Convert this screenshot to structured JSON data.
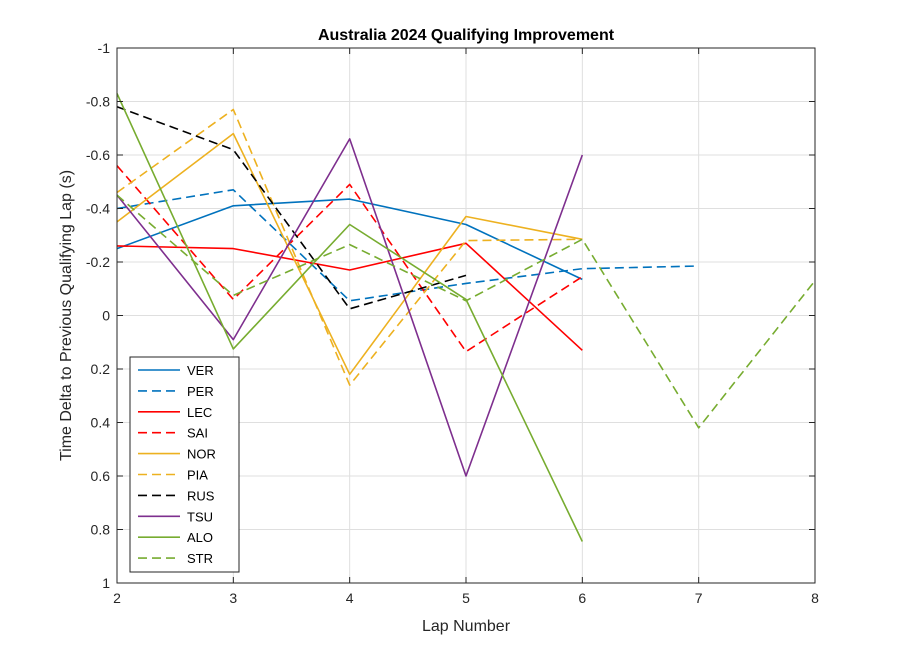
{
  "chart_data": {
    "type": "line",
    "title": "Australia 2024 Qualifying Improvement",
    "xlabel": "Lap Number",
    "ylabel": "Time Delta to Previous Qualifying Lap (s)",
    "xlim": [
      2,
      8
    ],
    "ylim": [
      -1,
      1
    ],
    "y_reversed": true,
    "x_ticks": [
      "2",
      "3",
      "4",
      "5",
      "6",
      "7",
      "8"
    ],
    "y_ticks": [
      "-1",
      "-0.8",
      "-0.6",
      "-0.4",
      "-0.2",
      "0",
      "0.2",
      "0.4",
      "0.6",
      "0.8",
      "1"
    ],
    "grid": true,
    "legend_position": "bottom-left",
    "series": [
      {
        "name": "VER",
        "color": "#0072BD",
        "dash": "solid",
        "x": [
          2,
          3,
          4,
          5,
          6
        ],
        "y": [
          -0.25,
          -0.41,
          -0.435,
          -0.34,
          -0.135
        ]
      },
      {
        "name": "PER",
        "color": "#0072BD",
        "dash": "dashed",
        "x": [
          2,
          3,
          4,
          5,
          6,
          7
        ],
        "y": [
          -0.4,
          -0.47,
          -0.055,
          -0.12,
          -0.175,
          -0.185
        ]
      },
      {
        "name": "LEC",
        "color": "#FF0000",
        "dash": "solid",
        "x": [
          2,
          3,
          4,
          5,
          6
        ],
        "y": [
          -0.26,
          -0.25,
          -0.17,
          -0.27,
          0.13
        ]
      },
      {
        "name": "SAI",
        "color": "#FF0000",
        "dash": "dashed",
        "x": [
          2,
          3,
          4,
          5,
          6
        ],
        "y": [
          -0.56,
          -0.06,
          -0.49,
          0.135,
          -0.145
        ]
      },
      {
        "name": "NOR",
        "color": "#EDB120",
        "dash": "solid",
        "x": [
          2,
          3,
          4,
          5,
          6
        ],
        "y": [
          -0.35,
          -0.68,
          0.22,
          -0.37,
          -0.285
        ]
      },
      {
        "name": "PIA",
        "color": "#EDB120",
        "dash": "dashed",
        "x": [
          2,
          3,
          4,
          5,
          6
        ],
        "y": [
          -0.46,
          -0.77,
          0.26,
          -0.28,
          -0.285
        ]
      },
      {
        "name": "RUS",
        "color": "#000000",
        "dash": "dashed",
        "x": [
          2,
          3,
          4,
          5
        ],
        "y": [
          -0.78,
          -0.62,
          -0.025,
          -0.15
        ]
      },
      {
        "name": "TSU",
        "color": "#7E2F8E",
        "dash": "solid",
        "x": [
          2,
          3,
          4,
          5,
          6
        ],
        "y": [
          -0.45,
          0.09,
          -0.66,
          0.6,
          -0.6
        ]
      },
      {
        "name": "ALO",
        "color": "#77AC30",
        "dash": "solid",
        "x": [
          2,
          3,
          4,
          5,
          6
        ],
        "y": [
          -0.83,
          0.125,
          -0.34,
          -0.06,
          0.845
        ]
      },
      {
        "name": "STR",
        "color": "#77AC30",
        "dash": "dashed",
        "x": [
          2,
          3,
          4,
          5,
          6,
          7,
          8
        ],
        "y": [
          -0.45,
          -0.075,
          -0.265,
          -0.055,
          -0.285,
          0.42,
          -0.13
        ]
      }
    ]
  }
}
